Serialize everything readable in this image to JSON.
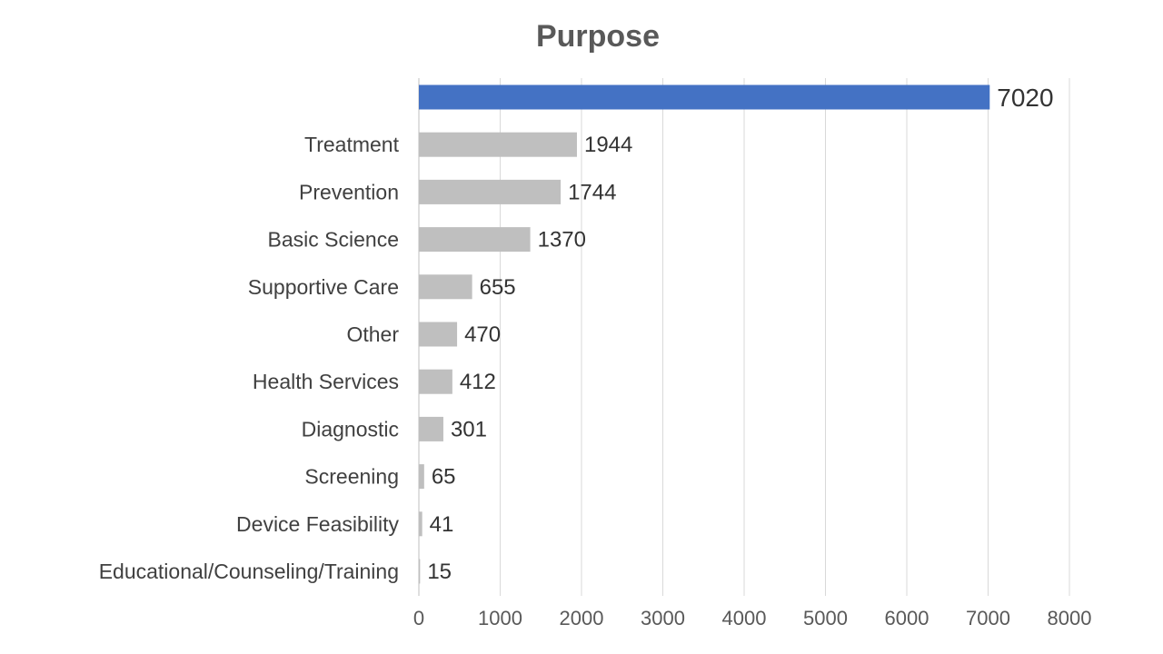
{
  "chart_data": {
    "type": "bar",
    "orientation": "horizontal",
    "title": "Purpose",
    "xlabel": "",
    "ylabel": "",
    "categories": [
      "",
      "Treatment",
      "Prevention",
      "Basic Science",
      "Supportive Care",
      "Other",
      "Health Services",
      "Diagnostic",
      "Screening",
      "Device Feasibility",
      "Educational/Counseling/Training"
    ],
    "values": [
      7020,
      1944,
      1744,
      1370,
      655,
      470,
      412,
      301,
      65,
      41,
      15
    ],
    "highlight_index": 0,
    "xlim": [
      0,
      8000
    ],
    "xticks": [
      0,
      1000,
      2000,
      3000,
      4000,
      5000,
      6000,
      7000,
      8000
    ],
    "grid": "vertical",
    "legend": "none",
    "colors": {
      "highlight_bar": "#4472c4",
      "highlight_label": "#2e75b6",
      "bar": "#bfbfbf",
      "text": "#404040",
      "grid": "#d9d9d9"
    }
  }
}
